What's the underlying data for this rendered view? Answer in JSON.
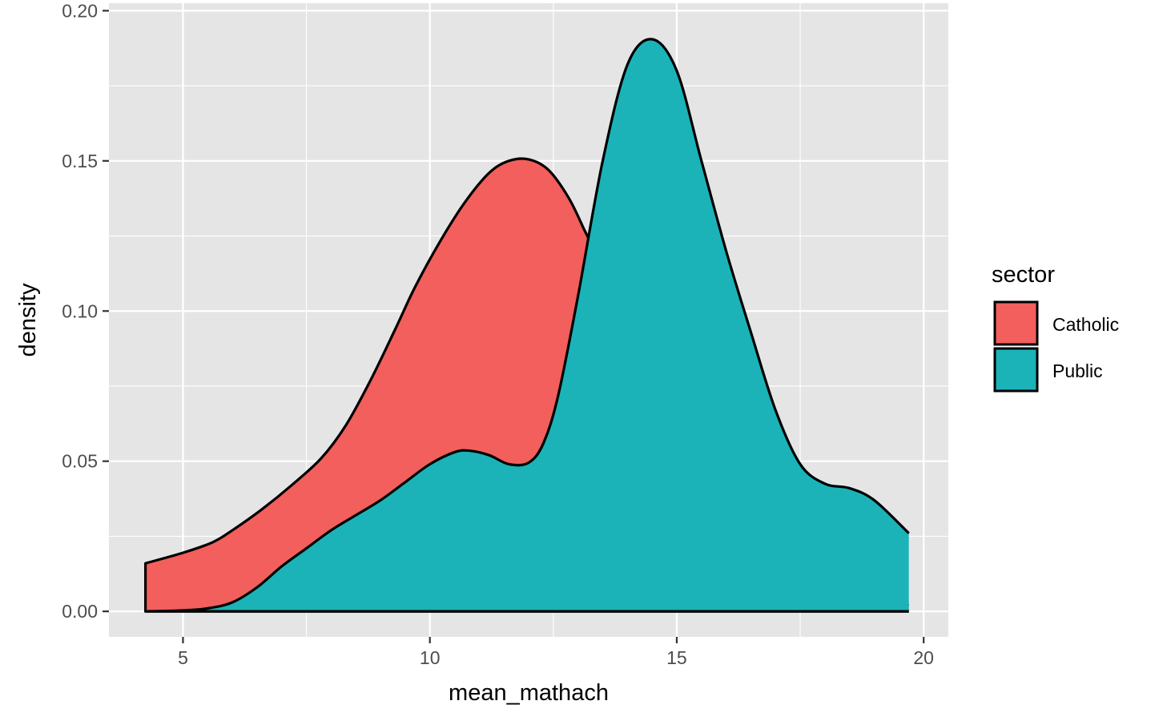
{
  "chart_data": {
    "type": "area",
    "subtype": "density",
    "xlabel": "mean_mathach",
    "ylabel": "density",
    "xlim": [
      3.5,
      20.5
    ],
    "ylim": [
      -0.0085,
      0.2025
    ],
    "x_ticks": [
      5,
      10,
      15,
      20
    ],
    "x_tick_labels": [
      "5",
      "10",
      "15",
      "20"
    ],
    "y_ticks": [
      0,
      0.05,
      0.1,
      0.15,
      0.2
    ],
    "y_tick_labels": [
      "0.00",
      "0.05",
      "0.10",
      "0.15",
      "0.20"
    ],
    "grid": true,
    "panel_background": "#e5e5e5",
    "grid_color": "#ffffff",
    "outline_color": "#000000",
    "legend": {
      "title": "sector",
      "position": "right",
      "entries": [
        {
          "label": "Catholic",
          "color": "#f25f5c"
        },
        {
          "label": "Public",
          "color": "#1bb3b8"
        }
      ]
    },
    "series": [
      {
        "name": "Catholic",
        "color": "#f25f5c",
        "x": [
          4.24,
          5.0,
          5.6,
          6.0,
          6.6,
          7.2,
          7.8,
          8.3,
          8.8,
          9.3,
          9.7,
          10.2,
          10.7,
          11.2,
          11.6,
          12.0,
          12.4,
          12.8,
          13.1,
          13.3,
          13.6,
          14.0,
          14.5,
          15.0,
          15.5,
          16.0,
          16.5,
          17.0,
          17.5,
          18.0,
          18.5,
          19.0,
          19.4,
          19.7
        ],
        "y": [
          0.016,
          0.0195,
          0.023,
          0.027,
          0.034,
          0.042,
          0.051,
          0.062,
          0.077,
          0.094,
          0.108,
          0.123,
          0.136,
          0.146,
          0.15,
          0.1505,
          0.147,
          0.138,
          0.128,
          0.12,
          0.1,
          0.08,
          0.06,
          0.045,
          0.035,
          0.028,
          0.022,
          0.017,
          0.013,
          0.01,
          0.007,
          0.005,
          0.003,
          0.002
        ]
      },
      {
        "name": "Public",
        "color": "#1bb3b8",
        "x": [
          4.24,
          5.0,
          5.5,
          6.0,
          6.5,
          7.0,
          7.5,
          8.0,
          8.5,
          9.0,
          9.5,
          10.0,
          10.5,
          10.8,
          11.2,
          11.6,
          12.0,
          12.3,
          12.6,
          13.0,
          13.5,
          14.0,
          14.5,
          15.0,
          15.5,
          16.0,
          16.5,
          17.0,
          17.5,
          18.0,
          18.5,
          19.0,
          19.7
        ],
        "y": [
          0.0,
          0.0003,
          0.001,
          0.003,
          0.008,
          0.015,
          0.021,
          0.027,
          0.032,
          0.037,
          0.043,
          0.049,
          0.053,
          0.0535,
          0.052,
          0.049,
          0.0495,
          0.056,
          0.072,
          0.105,
          0.15,
          0.182,
          0.1905,
          0.18,
          0.15,
          0.12,
          0.093,
          0.067,
          0.049,
          0.0425,
          0.041,
          0.037,
          0.026
        ]
      }
    ]
  }
}
